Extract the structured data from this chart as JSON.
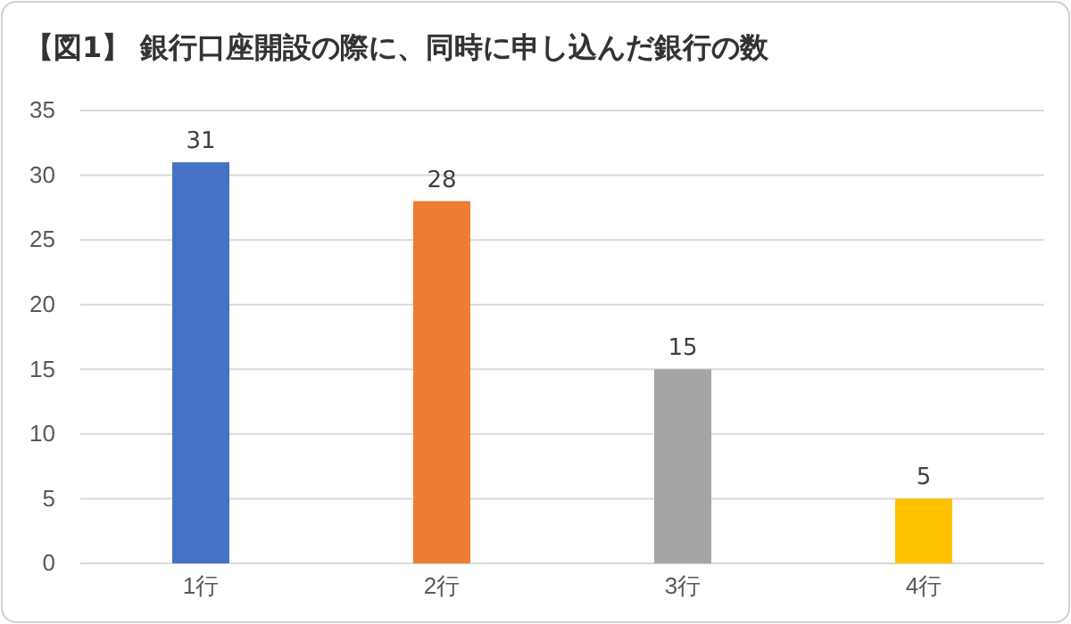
{
  "chart_data": {
    "type": "bar",
    "title": "【図1】 銀行口座開設の際に、同時に申し込んだ銀行の数",
    "categories": [
      "1行",
      "2行",
      "3行",
      "4行"
    ],
    "values": [
      31,
      28,
      15,
      5
    ],
    "colors": [
      "#4472c4",
      "#ed7d31",
      "#a5a5a5",
      "#ffc000"
    ],
    "ylim": [
      0,
      35
    ],
    "yticks": [
      0,
      5,
      10,
      15,
      20,
      25,
      30,
      35
    ],
    "grid": "y",
    "data_labels": true
  }
}
